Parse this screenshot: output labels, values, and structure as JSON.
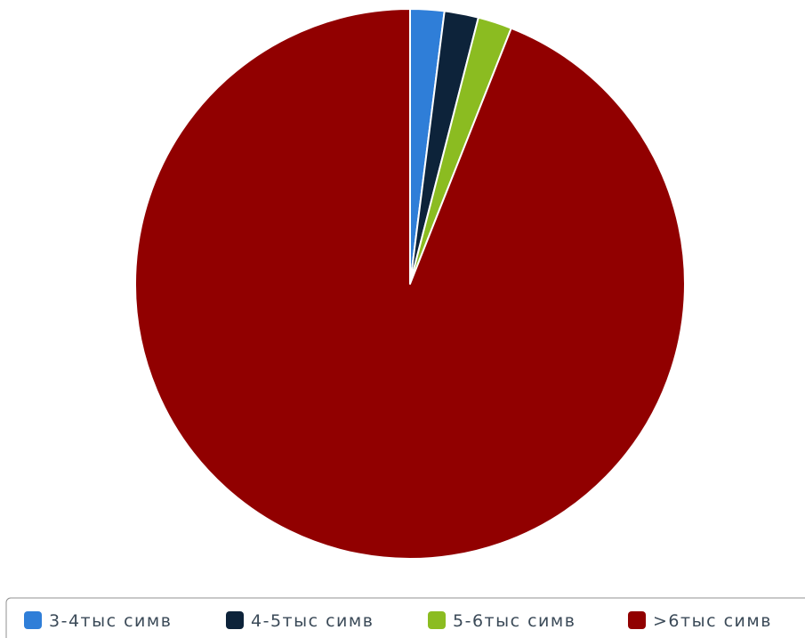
{
  "chart_data": {
    "type": "pie",
    "title": "",
    "slices": [
      {
        "label": "3-4тыс  симв",
        "value": 2,
        "color": "#2f7ed8"
      },
      {
        "label": "4-5тыс  симв",
        "value": 2,
        "color": "#0d233a"
      },
      {
        "label": "5-6тыс  симв",
        "value": 2,
        "color": "#8bbc21"
      },
      {
        "label": ">6тыс  симв",
        "value": 94,
        "color": "#910000"
      }
    ],
    "legend_position": "bottom"
  }
}
